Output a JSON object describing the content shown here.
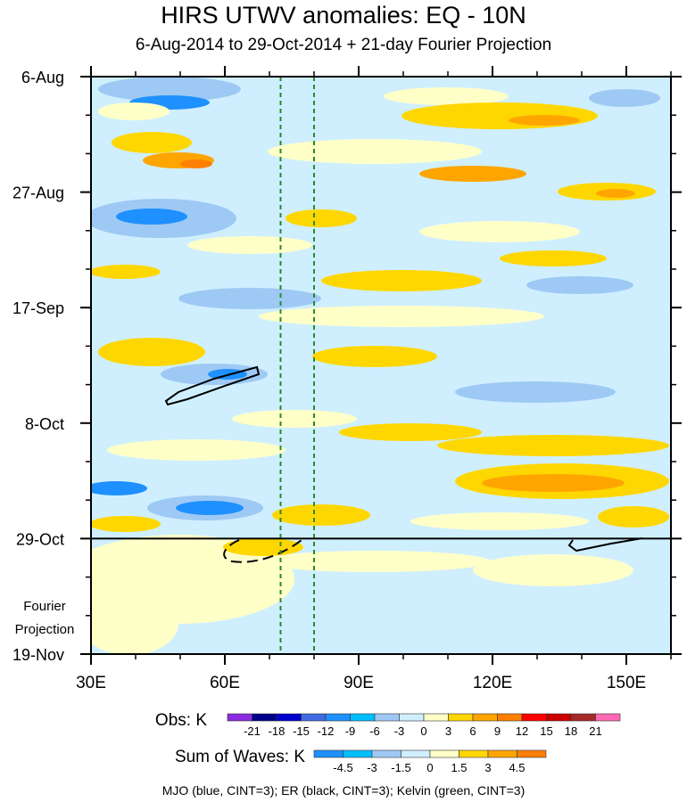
{
  "chart_data": {
    "type": "heatmap",
    "title": "HIRS UTWV anomalies: EQ - 10N",
    "subtitle": "6-Aug-2014 to 29-Oct-2014 + 21-day Fourier Projection",
    "x_ticks": [
      "30E",
      "60E",
      "90E",
      "120E",
      "150E"
    ],
    "x_tick_values": [
      30,
      60,
      90,
      120,
      150
    ],
    "xlim": [
      30,
      160
    ],
    "y_ticks": [
      "6-Aug",
      "27-Aug",
      "17-Sep",
      "8-Oct",
      "29-Oct",
      "19-Nov"
    ],
    "y_tick_days": [
      0,
      21,
      42,
      63,
      84,
      105
    ],
    "ylim_days": [
      0,
      105
    ],
    "observation_end_day": 84,
    "projection_label_line1": "Fourier",
    "projection_label_line2": "Projection",
    "reference_longitudes": [
      72.5,
      80
    ],
    "obs_legend": {
      "label": "Obs: K",
      "levels": [
        "-21",
        "-18",
        "-15",
        "-12",
        "-9",
        "-6",
        "-3",
        "0",
        "3",
        "6",
        "9",
        "12",
        "15",
        "18",
        "21"
      ],
      "colors": [
        "#8a2be2",
        "#00008b",
        "#0000cd",
        "#4169e1",
        "#1e90ff",
        "#00bfff",
        "#9ec9f4",
        "#cfefff",
        "#ffffc8",
        "#ffd700",
        "#ffa500",
        "#ff7f00",
        "#ff0000",
        "#cc0000",
        "#a52a2a",
        "#ff69b4"
      ]
    },
    "waves_legend": {
      "label": "Sum of Waves: K",
      "levels": [
        "-4.5",
        "-3",
        "-1.5",
        "0",
        "1.5",
        "3",
        "4.5"
      ],
      "colors": [
        "#1e90ff",
        "#00bfff",
        "#9ec9f4",
        "#cfefff",
        "#ffffc8",
        "#ffd700",
        "#ffa500",
        "#ff7f00"
      ]
    },
    "contour_note": "MJO (blue, CINT=3); ER (black, CINT=3); Kelvin (green, CINT=3)"
  }
}
